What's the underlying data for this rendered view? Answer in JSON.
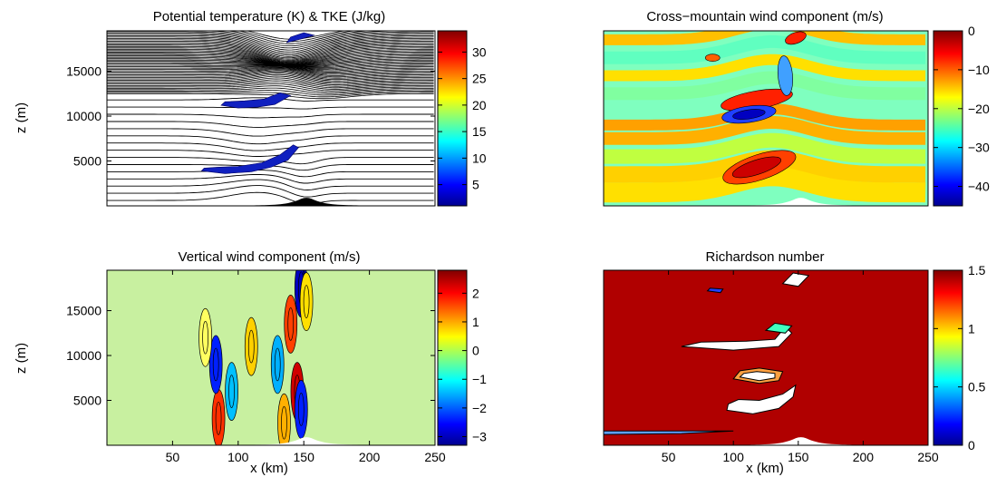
{
  "figure": {
    "shared_y_label": "z (m)",
    "shared_x_label": "x (km)"
  },
  "chart_data": [
    {
      "type": "heatmap",
      "title": "Potential temperature (K) & TKE (J/kg)",
      "ylabel": "z (m)",
      "xlabel": "",
      "xlim": [
        0,
        250
      ],
      "ylim": [
        0,
        19500
      ],
      "y_ticks": [
        5000,
        10000,
        15000
      ],
      "x_ticks": [],
      "colorbar": {
        "range": [
          1,
          34
        ],
        "ticks": [
          5,
          10,
          15,
          20,
          25,
          30
        ]
      },
      "notes": "isentropes drawn as black contour lines; TKE filled in blue"
    },
    {
      "type": "heatmap",
      "title": "Cross−mountain wind component (m/s)",
      "ylabel": "",
      "xlabel": "",
      "xlim": [
        0,
        250
      ],
      "ylim": [
        0,
        19500
      ],
      "y_ticks": [],
      "x_ticks": [],
      "colorbar": {
        "range": [
          -45,
          0
        ],
        "ticks": [
          0,
          -10,
          -20,
          -30,
          -40
        ]
      }
    },
    {
      "type": "heatmap",
      "title": "Vertical wind component (m/s)",
      "ylabel": "z (m)",
      "xlabel": "x (km)",
      "xlim": [
        0,
        250
      ],
      "ylim": [
        0,
        19500
      ],
      "y_ticks": [
        5000,
        10000,
        15000
      ],
      "x_ticks": [
        50,
        100,
        150,
        200,
        250
      ],
      "colorbar": {
        "range": [
          -3.3,
          2.8
        ],
        "ticks": [
          2,
          1,
          0,
          -1,
          -2,
          -3
        ]
      }
    },
    {
      "type": "heatmap",
      "title": "Richardson number",
      "ylabel": "",
      "xlabel": "x (km)",
      "xlim": [
        0,
        250
      ],
      "ylim": [
        0,
        19500
      ],
      "y_ticks": [],
      "x_ticks": [
        50,
        100,
        150,
        200,
        250
      ],
      "colorbar": {
        "range": [
          0,
          1.5
        ],
        "ticks": [
          1.5,
          1,
          0.5,
          0
        ]
      }
    }
  ],
  "colors": {
    "jet": [
      "#00008f",
      "#0000ff",
      "#00ffff",
      "#ffff00",
      "#ff0000",
      "#800000"
    ],
    "terrain": "#000000",
    "ri_field": "#b00000",
    "w_background": "#c8f0a0"
  }
}
